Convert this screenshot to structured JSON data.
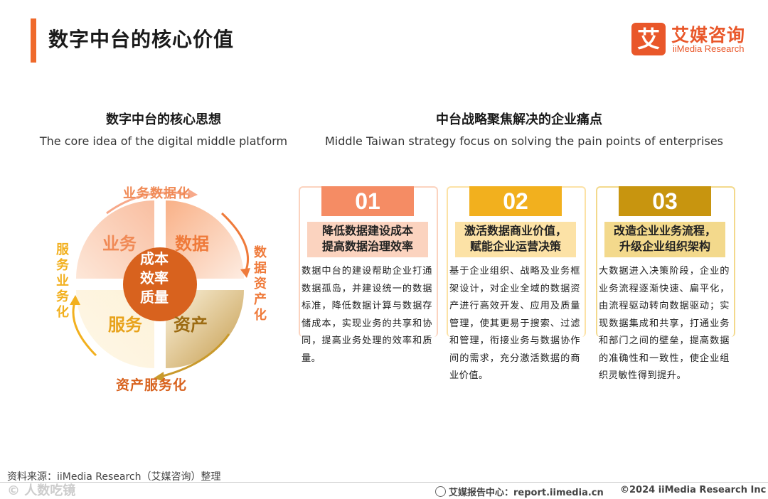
{
  "header": {
    "title": "数字中台的核心价值"
  },
  "logo": {
    "mark": "艾",
    "name_cn": "艾媒咨询",
    "name_en": "iiMedia Research"
  },
  "left_section": {
    "title": "数字中台的核心思想",
    "subtitle": "The core idea of the digital middle platform",
    "center": [
      "成本",
      "效率",
      "质量"
    ],
    "quadrants": {
      "top_left": "业务",
      "top_right": "数据",
      "bottom_left": "服务",
      "bottom_right": "资产"
    },
    "arrows": {
      "top": "业务数据化",
      "right": "数据资产化",
      "bottom": "资产服务化",
      "left": "服务业务化"
    }
  },
  "right_section": {
    "title": "中台战略聚焦解决的企业痛点",
    "subtitle": "Middle Taiwan strategy focus on solving the pain points of enterprises",
    "cards": [
      {
        "number": "01",
        "pain": "降低数据建设成本\n提高数据治理效率",
        "desc": "数据中台的建设帮助企业打通数据孤岛，并建设统一的数据标准，降低数据计算与数据存储成本，实现业务的共享和协同，提高业务处理的效率和质量。",
        "color": "#f58c64",
        "light": "#fbd3bf"
      },
      {
        "number": "02",
        "pain": "激活数据商业价值，\n赋能企业运营决策",
        "desc": "基于企业组织、战略及业务框架设计，对企业全域的数据资产进行高效开发、应用及质量管理，使其更易于搜索、过滤和管理，衔接业务与数据协作间的需求，充分激活数据的商业价值。",
        "color": "#f2b01e",
        "light": "#fce2a6"
      },
      {
        "number": "03",
        "pain": "改造企业业务流程，\n升级企业组织架构",
        "desc": "大数据进入决策阶段，企业的业务流程逐渐快速、扁平化，由流程驱动转向数据驱动；实现数据集成和共享，打通业务和部门之间的壁垒，提高数据的准确性和一致性，使企业组织灵敏性得到提升。",
        "color": "#c8950f",
        "light": "#f3d98c"
      }
    ]
  },
  "footer": {
    "source": "资料来源：iiMedia Research（艾媒咨询）整理",
    "watermark": "© 人数吃镜",
    "center": "艾媒报告中心：report.iimedia.cn",
    "right": "©2024  iiMedia Research  Inc"
  }
}
